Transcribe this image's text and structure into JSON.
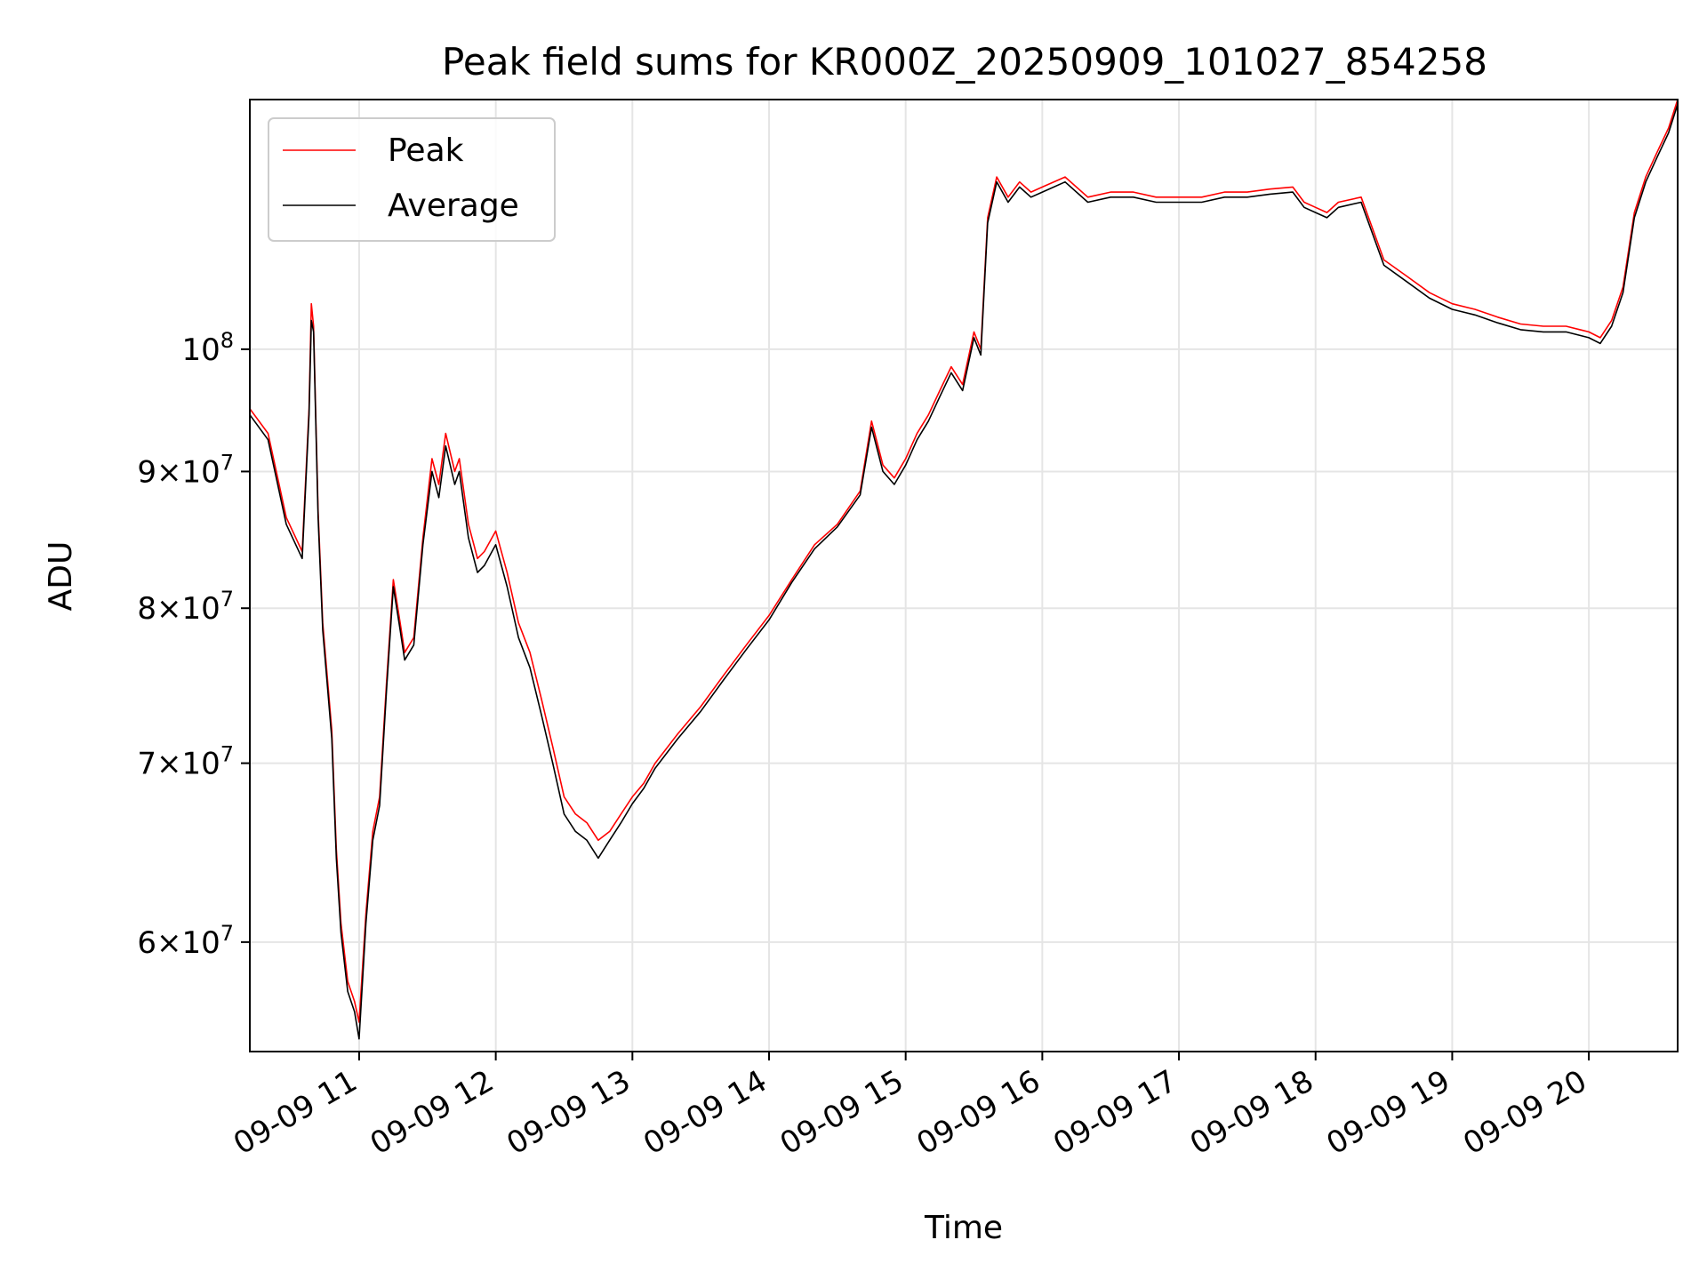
{
  "chart_data": {
    "type": "line",
    "title": "Peak field sums for KR000Z_20250909_101027_854258",
    "xlabel": "Time",
    "ylabel": "ADU",
    "x_scale": "time",
    "y_scale": "log",
    "xlim": [
      "2025-09-09 10:12",
      "2025-09-09 20:39"
    ],
    "ylim": [
      54600000,
      124000000
    ],
    "grid": true,
    "legend_position": "top-left",
    "x_ticks": [
      {
        "value": "2025-09-09 11:00",
        "label": "09-09 11"
      },
      {
        "value": "2025-09-09 12:00",
        "label": "09-09 12"
      },
      {
        "value": "2025-09-09 13:00",
        "label": "09-09 13"
      },
      {
        "value": "2025-09-09 14:00",
        "label": "09-09 14"
      },
      {
        "value": "2025-09-09 15:00",
        "label": "09-09 15"
      },
      {
        "value": "2025-09-09 16:00",
        "label": "09-09 16"
      },
      {
        "value": "2025-09-09 17:00",
        "label": "09-09 17"
      },
      {
        "value": "2025-09-09 18:00",
        "label": "09-09 18"
      },
      {
        "value": "2025-09-09 19:00",
        "label": "09-09 19"
      },
      {
        "value": "2025-09-09 20:00",
        "label": "09-09 20"
      }
    ],
    "y_ticks": [
      {
        "value": 60000000,
        "mantissa": "6",
        "base": "10",
        "exp": "7"
      },
      {
        "value": 70000000,
        "mantissa": "7",
        "base": "10",
        "exp": "7"
      },
      {
        "value": 80000000,
        "mantissa": "8",
        "base": "10",
        "exp": "7"
      },
      {
        "value": 90000000,
        "mantissa": "9",
        "base": "10",
        "exp": "7"
      },
      {
        "value": 100000000,
        "mantissa": "",
        "base": "10",
        "exp": "8"
      }
    ],
    "series": [
      {
        "name": "Peak",
        "color": "#ff0000",
        "x": [
          "10:12",
          "10:20",
          "10:28",
          "10:35",
          "10:38",
          "10:39",
          "10:40",
          "10:42",
          "10:44",
          "10:48",
          "10:50",
          "10:52",
          "10:55",
          "10:58",
          "11:00",
          "11:03",
          "11:06",
          "11:09",
          "11:12",
          "11:15",
          "11:18",
          "11:20",
          "11:24",
          "11:28",
          "11:32",
          "11:35",
          "11:38",
          "11:42",
          "11:44",
          "11:48",
          "11:52",
          "11:55",
          "12:00",
          "12:05",
          "12:10",
          "12:15",
          "12:20",
          "12:25",
          "12:30",
          "12:35",
          "12:40",
          "12:45",
          "12:50",
          "12:55",
          "13:00",
          "13:05",
          "13:10",
          "13:20",
          "13:30",
          "13:40",
          "13:50",
          "14:00",
          "14:10",
          "14:20",
          "14:30",
          "14:40",
          "14:45",
          "14:50",
          "14:55",
          "15:00",
          "15:05",
          "15:10",
          "15:15",
          "15:20",
          "15:25",
          "15:30",
          "15:33",
          "15:36",
          "15:40",
          "15:45",
          "15:50",
          "15:55",
          "16:00",
          "16:10",
          "16:20",
          "16:30",
          "16:40",
          "16:50",
          "17:00",
          "17:10",
          "17:20",
          "17:30",
          "17:40",
          "17:50",
          "17:55",
          "18:00",
          "18:05",
          "18:10",
          "18:20",
          "18:30",
          "18:40",
          "18:50",
          "19:00",
          "19:10",
          "19:20",
          "19:30",
          "19:40",
          "19:50",
          "20:00",
          "20:05",
          "20:10",
          "20:15",
          "20:20",
          "20:25",
          "20:30",
          "20:35",
          "20:39"
        ],
        "y": [
          95000000,
          93000000,
          86500000,
          84000000,
          95000000,
          104000000,
          102000000,
          87000000,
          79000000,
          72000000,
          65000000,
          61000000,
          58000000,
          57000000,
          56000000,
          61500000,
          66000000,
          68000000,
          75000000,
          82000000,
          79000000,
          77000000,
          78000000,
          85000000,
          91000000,
          89000000,
          93000000,
          90000000,
          91000000,
          86000000,
          83500000,
          84000000,
          85500000,
          82500000,
          79000000,
          77000000,
          74000000,
          71000000,
          68000000,
          67000000,
          66500000,
          65500000,
          66000000,
          67000000,
          68000000,
          68800000,
          70000000,
          71800000,
          73500000,
          75500000,
          77500000,
          79500000,
          82000000,
          84500000,
          86000000,
          88500000,
          94000000,
          90500000,
          89500000,
          91000000,
          93000000,
          94500000,
          96500000,
          98500000,
          97000000,
          101500000,
          100000000,
          112000000,
          116000000,
          114000000,
          115500000,
          114500000,
          115000000,
          116000000,
          114000000,
          114500000,
          114500000,
          114000000,
          114000000,
          114000000,
          114500000,
          114500000,
          114800000,
          115000000,
          113500000,
          113000000,
          112500000,
          113500000,
          114000000,
          108000000,
          106500000,
          105000000,
          104000000,
          103500000,
          102800000,
          102200000,
          102000000,
          102000000,
          101500000,
          101000000,
          102500000,
          105500000,
          112500000,
          116000000,
          118500000,
          121000000,
          124000000
        ]
      },
      {
        "name": "Average",
        "color": "#000000",
        "x": [
          "10:12",
          "10:20",
          "10:28",
          "10:35",
          "10:38",
          "10:39",
          "10:40",
          "10:42",
          "10:44",
          "10:48",
          "10:50",
          "10:52",
          "10:55",
          "10:58",
          "11:00",
          "11:03",
          "11:06",
          "11:09",
          "11:12",
          "11:15",
          "11:18",
          "11:20",
          "11:24",
          "11:28",
          "11:32",
          "11:35",
          "11:38",
          "11:42",
          "11:44",
          "11:48",
          "11:52",
          "11:55",
          "12:00",
          "12:05",
          "12:10",
          "12:15",
          "12:20",
          "12:25",
          "12:30",
          "12:35",
          "12:40",
          "12:45",
          "12:50",
          "12:55",
          "13:00",
          "13:05",
          "13:10",
          "13:20",
          "13:30",
          "13:40",
          "13:50",
          "14:00",
          "14:10",
          "14:20",
          "14:30",
          "14:40",
          "14:45",
          "14:50",
          "14:55",
          "15:00",
          "15:05",
          "15:10",
          "15:15",
          "15:20",
          "15:25",
          "15:30",
          "15:33",
          "15:36",
          "15:40",
          "15:45",
          "15:50",
          "15:55",
          "16:00",
          "16:10",
          "16:20",
          "16:30",
          "16:40",
          "16:50",
          "17:00",
          "17:10",
          "17:20",
          "17:30",
          "17:40",
          "17:50",
          "17:55",
          "18:00",
          "18:05",
          "18:10",
          "18:20",
          "18:30",
          "18:40",
          "18:50",
          "19:00",
          "19:10",
          "19:20",
          "19:30",
          "19:40",
          "19:50",
          "20:00",
          "20:05",
          "20:10",
          "20:15",
          "20:20",
          "20:25",
          "20:30",
          "20:35",
          "20:39"
        ],
        "y": [
          94500000,
          92500000,
          86000000,
          83500000,
          94500000,
          102500000,
          101500000,
          86500000,
          78500000,
          71500000,
          64500000,
          60500000,
          57500000,
          56500000,
          55200000,
          61000000,
          65500000,
          67500000,
          74500000,
          81500000,
          78500000,
          76500000,
          77500000,
          84500000,
          90000000,
          88000000,
          92000000,
          89000000,
          90000000,
          85000000,
          82500000,
          83000000,
          84500000,
          81500000,
          78000000,
          76000000,
          73000000,
          70000000,
          67000000,
          66000000,
          65500000,
          64500000,
          65500000,
          66500000,
          67600000,
          68500000,
          69700000,
          71500000,
          73200000,
          75200000,
          77200000,
          79200000,
          81800000,
          84200000,
          85800000,
          88200000,
          93500000,
          90000000,
          89000000,
          90500000,
          92500000,
          94000000,
          96000000,
          98000000,
          96500000,
          101000000,
          99500000,
          111500000,
          115500000,
          113500000,
          115000000,
          114000000,
          114500000,
          115500000,
          113500000,
          114000000,
          114000000,
          113500000,
          113500000,
          113500000,
          114000000,
          114000000,
          114300000,
          114500000,
          113000000,
          112500000,
          112000000,
          113000000,
          113500000,
          107500000,
          106000000,
          104500000,
          103500000,
          103000000,
          102300000,
          101700000,
          101500000,
          101500000,
          101000000,
          100500000,
          102000000,
          105000000,
          112000000,
          115500000,
          118000000,
          120500000,
          123500000
        ]
      }
    ]
  }
}
